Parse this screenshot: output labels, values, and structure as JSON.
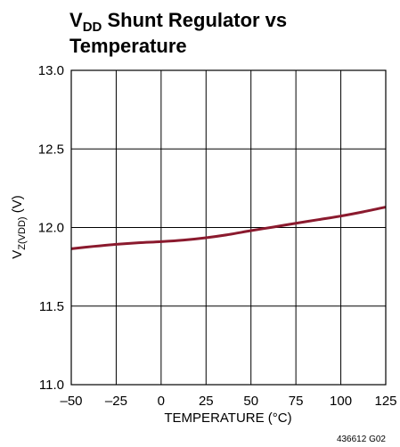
{
  "chart_data": {
    "type": "line",
    "title": {
      "main": "V",
      "sub": "DD",
      "rest": " Shunt Regulator vs",
      "line2": "Temperature"
    },
    "xlabel": "TEMPERATURE (°C)",
    "ylabel": {
      "main": "V",
      "sub": "Z(VDD)",
      "rest": " (V)"
    },
    "xlim": [
      -50,
      125
    ],
    "ylim": [
      11.0,
      13.0
    ],
    "x_ticks": [
      -50,
      -25,
      0,
      25,
      50,
      75,
      100,
      125
    ],
    "x_tick_labels": [
      "–50",
      "–25",
      "0",
      "25",
      "50",
      "75",
      "100",
      "125"
    ],
    "y_ticks": [
      11.0,
      11.5,
      12.0,
      12.5,
      13.0
    ],
    "y_tick_labels": [
      "11.0",
      "11.5",
      "12.0",
      "12.5",
      "13.0"
    ],
    "grid": true,
    "figure_code": "436612 G02",
    "series": [
      {
        "color": "#8b1a2e",
        "x": [
          -50,
          -37.5,
          -25,
          -12.5,
          0,
          12.5,
          25,
          37.5,
          50,
          62.5,
          75,
          87.5,
          100,
          112.5,
          125
        ],
        "y": [
          11.865,
          11.88,
          11.893,
          11.903,
          11.91,
          11.92,
          11.935,
          11.955,
          11.98,
          12.003,
          12.027,
          12.05,
          12.073,
          12.1,
          12.13
        ]
      }
    ]
  }
}
